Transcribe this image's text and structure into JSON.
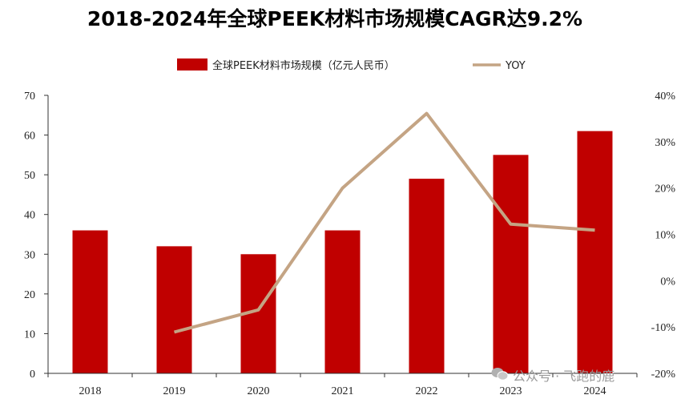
{
  "chart_data": {
    "type": "bar",
    "title": "2018-2024年全球PEEK材料市场规模CAGR达9.2%",
    "categories": [
      "2018",
      "2019",
      "2020",
      "2021",
      "2022",
      "2023",
      "2024"
    ],
    "series": [
      {
        "name": "全球PEEK材料市场规模（亿元人民币）",
        "type": "bar",
        "axis": "left",
        "color": "#c00000",
        "values": [
          36,
          32,
          30,
          36,
          49,
          55,
          61
        ]
      },
      {
        "name": "YOY",
        "type": "line",
        "axis": "right",
        "color": "#c4a484",
        "values": [
          null,
          -11.1,
          -6.3,
          20.0,
          36.1,
          12.2,
          10.9
        ]
      }
    ],
    "y_left": {
      "min": 0,
      "max": 70,
      "ticks": [
        0,
        10,
        20,
        30,
        40,
        50,
        60,
        70
      ]
    },
    "y_right": {
      "min": -20,
      "max": 40,
      "ticks": [
        "-20%",
        "-10%",
        "0%",
        "10%",
        "20%",
        "30%",
        "40%"
      ]
    },
    "legend_position": "top-center",
    "grid": false
  },
  "watermark": "公众号 · 飞跑的鹿"
}
